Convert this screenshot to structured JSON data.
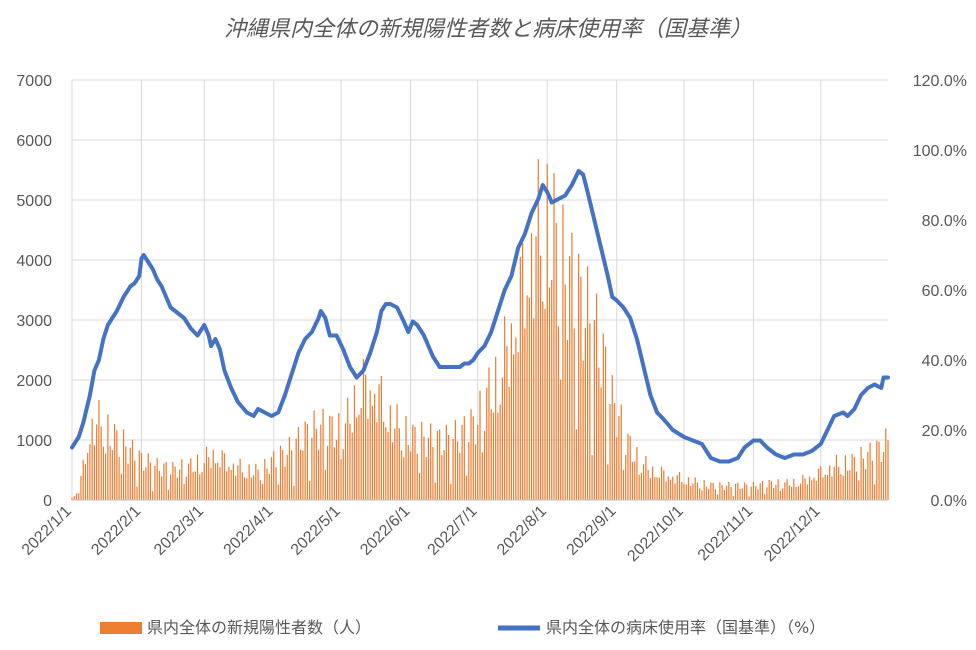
{
  "chart_data": {
    "type": "bar+line",
    "title": "沖縄県内全体の新規陽性者数と病床使用率（国基準）",
    "left_axis": {
      "ylim": [
        0,
        7000
      ],
      "ticks": [
        "0",
        "1000",
        "2000",
        "3000",
        "4000",
        "5000",
        "6000",
        "7000"
      ]
    },
    "right_axis": {
      "ylim": [
        0,
        120
      ],
      "ticks": [
        "0.0%",
        "20.0%",
        "40.0%",
        "60.0%",
        "80.0%",
        "100.0%",
        "120.0%"
      ]
    },
    "x_tick_labels": [
      "2022/1/1",
      "2022/2/1",
      "2022/3/1",
      "2022/4/1",
      "2022/5/1",
      "2022/6/1",
      "2022/7/1",
      "2022/8/1",
      "2022/9/1",
      "2022/10/1",
      "2022/11/1",
      "2022/12/1"
    ],
    "x_tick_days": [
      0,
      31,
      59,
      90,
      120,
      151,
      181,
      212,
      243,
      273,
      304,
      334
    ],
    "grid": "vertical-and-horizontal",
    "legend_position": "bottom",
    "series": [
      {
        "name": "県内全体の新規陽性者数（人）",
        "kind": "bar",
        "axis": "left",
        "color": "#ed7d31",
        "x_start": "2022/1/1",
        "x_end": "2022/12/31",
        "daily_estimates_by_day": [
          [
            0,
            50
          ],
          [
            3,
            200
          ],
          [
            5,
            700
          ],
          [
            8,
            1500
          ],
          [
            11,
            1700
          ],
          [
            14,
            1600
          ],
          [
            17,
            1400
          ],
          [
            20,
            1300
          ],
          [
            25,
            1100
          ],
          [
            31,
            850
          ],
          [
            38,
            700
          ],
          [
            45,
            650
          ],
          [
            52,
            700
          ],
          [
            59,
            850
          ],
          [
            63,
            1000
          ],
          [
            70,
            800
          ],
          [
            77,
            650
          ],
          [
            84,
            600
          ],
          [
            90,
            850
          ],
          [
            97,
            1050
          ],
          [
            103,
            1350
          ],
          [
            108,
            1500
          ],
          [
            113,
            1550
          ],
          [
            120,
            1450
          ],
          [
            124,
            1800
          ],
          [
            127,
            2300
          ],
          [
            131,
            2450
          ],
          [
            135,
            2400
          ],
          [
            139,
            2050
          ],
          [
            143,
            1700
          ],
          [
            147,
            1500
          ],
          [
            151,
            1350
          ],
          [
            158,
            1300
          ],
          [
            165,
            1250
          ],
          [
            172,
            1350
          ],
          [
            179,
            1600
          ],
          [
            181,
            1700
          ],
          [
            185,
            2200
          ],
          [
            188,
            2400
          ],
          [
            192,
            2900
          ],
          [
            196,
            3600
          ],
          [
            200,
            4400
          ],
          [
            204,
            5300
          ],
          [
            208,
            5700
          ],
          [
            212,
            5900
          ],
          [
            215,
            5600
          ],
          [
            218,
            5000
          ],
          [
            222,
            4700
          ],
          [
            226,
            4300
          ],
          [
            230,
            3900
          ],
          [
            234,
            3500
          ],
          [
            238,
            2800
          ],
          [
            241,
            2100
          ],
          [
            243,
            1900
          ],
          [
            247,
            1300
          ],
          [
            252,
            900
          ],
          [
            258,
            650
          ],
          [
            265,
            550
          ],
          [
            273,
            450
          ],
          [
            280,
            350
          ],
          [
            287,
            300
          ],
          [
            294,
            300
          ],
          [
            304,
            300
          ],
          [
            311,
            350
          ],
          [
            318,
            350
          ],
          [
            325,
            400
          ],
          [
            334,
            600
          ],
          [
            341,
            750
          ],
          [
            348,
            800
          ],
          [
            355,
            950
          ],
          [
            361,
            1100
          ],
          [
            364,
            1250
          ]
        ]
      },
      {
        "name": "県内全体の病床使用率（国基準）（%）",
        "kind": "line",
        "axis": "right",
        "color": "#4472c4",
        "points_by_day": [
          [
            0,
            15
          ],
          [
            3,
            18
          ],
          [
            5,
            22
          ],
          [
            8,
            30
          ],
          [
            10,
            37
          ],
          [
            12,
            40
          ],
          [
            14,
            46
          ],
          [
            16,
            50
          ],
          [
            18,
            52
          ],
          [
            20,
            54
          ],
          [
            23,
            58
          ],
          [
            26,
            61
          ],
          [
            28,
            62
          ],
          [
            30,
            64
          ],
          [
            31,
            69
          ],
          [
            32,
            70
          ],
          [
            34,
            68
          ],
          [
            36,
            66
          ],
          [
            38,
            63
          ],
          [
            40,
            61
          ],
          [
            42,
            58
          ],
          [
            44,
            55
          ],
          [
            46,
            54
          ],
          [
            50,
            52
          ],
          [
            53,
            49
          ],
          [
            56,
            47
          ],
          [
            59,
            50
          ],
          [
            61,
            47
          ],
          [
            62,
            44
          ],
          [
            64,
            46
          ],
          [
            66,
            43
          ],
          [
            68,
            37
          ],
          [
            71,
            32
          ],
          [
            74,
            28
          ],
          [
            78,
            25
          ],
          [
            81,
            24
          ],
          [
            83,
            26
          ],
          [
            86,
            25
          ],
          [
            89,
            24
          ],
          [
            92,
            25
          ],
          [
            95,
            30
          ],
          [
            98,
            36
          ],
          [
            101,
            42
          ],
          [
            104,
            46
          ],
          [
            107,
            48
          ],
          [
            110,
            52
          ],
          [
            111,
            54
          ],
          [
            113,
            52
          ],
          [
            115,
            47
          ],
          [
            118,
            47
          ],
          [
            121,
            43
          ],
          [
            124,
            38
          ],
          [
            127,
            35
          ],
          [
            130,
            37
          ],
          [
            133,
            42
          ],
          [
            136,
            48
          ],
          [
            138,
            54
          ],
          [
            140,
            56
          ],
          [
            142,
            56
          ],
          [
            145,
            55
          ],
          [
            148,
            51
          ],
          [
            150,
            48
          ],
          [
            152,
            51
          ],
          [
            154,
            50
          ],
          [
            157,
            47
          ],
          [
            159,
            44
          ],
          [
            161,
            41
          ],
          [
            164,
            38
          ],
          [
            167,
            38
          ],
          [
            170,
            38
          ],
          [
            173,
            38
          ],
          [
            175,
            39
          ],
          [
            177,
            39
          ],
          [
            179,
            40
          ],
          [
            181,
            42
          ],
          [
            184,
            44
          ],
          [
            187,
            48
          ],
          [
            190,
            54
          ],
          [
            193,
            60
          ],
          [
            196,
            64
          ],
          [
            199,
            72
          ],
          [
            202,
            76
          ],
          [
            205,
            82
          ],
          [
            208,
            86
          ],
          [
            210,
            90
          ],
          [
            212,
            88
          ],
          [
            214,
            85
          ],
          [
            217,
            86
          ],
          [
            220,
            87
          ],
          [
            223,
            90
          ],
          [
            226,
            94
          ],
          [
            228,
            93
          ],
          [
            230,
            88
          ],
          [
            233,
            80
          ],
          [
            236,
            72
          ],
          [
            239,
            64
          ],
          [
            241,
            58
          ],
          [
            243,
            57
          ],
          [
            246,
            55
          ],
          [
            249,
            52
          ],
          [
            252,
            46
          ],
          [
            255,
            38
          ],
          [
            258,
            30
          ],
          [
            261,
            25
          ],
          [
            264,
            23
          ],
          [
            268,
            20
          ],
          [
            273,
            18
          ],
          [
            277,
            17
          ],
          [
            281,
            16
          ],
          [
            285,
            12
          ],
          [
            289,
            11
          ],
          [
            293,
            11
          ],
          [
            297,
            12
          ],
          [
            300,
            15
          ],
          [
            304,
            17
          ],
          [
            307,
            17
          ],
          [
            310,
            15
          ],
          [
            314,
            13
          ],
          [
            318,
            12
          ],
          [
            322,
            13
          ],
          [
            326,
            13
          ],
          [
            330,
            14
          ],
          [
            334,
            16
          ],
          [
            337,
            20
          ],
          [
            340,
            24
          ],
          [
            344,
            25
          ],
          [
            346,
            24
          ],
          [
            349,
            26
          ],
          [
            352,
            30
          ],
          [
            355,
            32
          ],
          [
            358,
            33
          ],
          [
            361,
            32
          ],
          [
            362,
            35
          ],
          [
            364,
            35
          ]
        ]
      }
    ]
  }
}
